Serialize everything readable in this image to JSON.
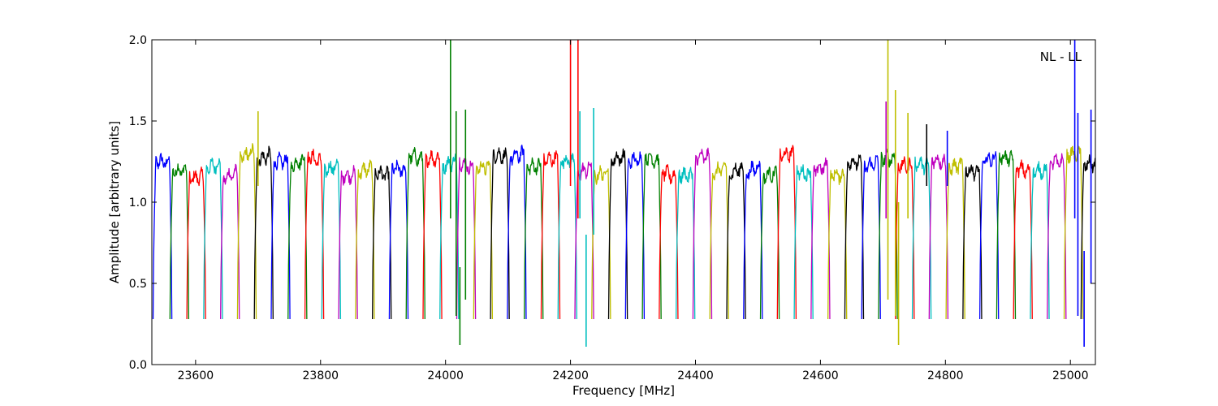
{
  "chart_data": {
    "type": "line",
    "title": "",
    "xlabel": "Frequency [MHz]",
    "ylabel": "Amplitude [arbitrary units]",
    "xlim": [
      23530,
      25040
    ],
    "ylim": [
      0.0,
      2.0
    ],
    "xticks": [
      23600,
      23800,
      24000,
      24200,
      24400,
      24600,
      24800,
      25000
    ],
    "yticks": [
      0.0,
      0.5,
      1.0,
      1.5,
      2.0
    ],
    "ytick_labels": [
      "0.0",
      "0.5",
      "1.0",
      "1.5",
      "2.0"
    ],
    "grid": false,
    "annotation": "NL - LL",
    "annotation_position": "top-right",
    "color_cycle": [
      "#0000ff",
      "#008000",
      "#ff0000",
      "#00bfbf",
      "#bf00bf",
      "#bfbf00",
      "#000000"
    ],
    "channel_count": 56,
    "channel_start_mhz": 23532,
    "channel_spacing_mhz": 27,
    "channel_width_mhz": 30,
    "plateau_level": 1.2,
    "dip_level": 0.28,
    "spikes": [
      {
        "x": 24008,
        "y_min": 0.9,
        "y_max": 2.0,
        "color": "#008000"
      },
      {
        "x": 24017,
        "y_min": 0.3,
        "y_max": 1.56,
        "color": "#008000"
      },
      {
        "x": 24032,
        "y_min": 0.4,
        "y_max": 1.57,
        "color": "#008000"
      },
      {
        "x": 24023,
        "y_min": 0.12,
        "y_max": 0.6,
        "color": "#008000"
      },
      {
        "x": 24200,
        "y_min": 1.1,
        "y_max": 2.0,
        "color": "#ff0000"
      },
      {
        "x": 24212,
        "y_min": 0.9,
        "y_max": 2.0,
        "color": "#ff0000"
      },
      {
        "x": 24215,
        "y_min": 0.9,
        "y_max": 1.56,
        "color": "#00bfbf"
      },
      {
        "x": 24237,
        "y_min": 0.8,
        "y_max": 1.58,
        "color": "#00bfbf"
      },
      {
        "x": 24225,
        "y_min": 0.11,
        "y_max": 0.8,
        "color": "#00bfbf"
      },
      {
        "x": 23700,
        "y_min": 1.1,
        "y_max": 1.56,
        "color": "#bfbf00"
      },
      {
        "x": 24705,
        "y_min": 0.9,
        "y_max": 1.62,
        "color": "#bf00bf"
      },
      {
        "x": 24708,
        "y_min": 0.4,
        "y_max": 2.0,
        "color": "#bfbf00"
      },
      {
        "x": 24720,
        "y_min": 0.3,
        "y_max": 1.69,
        "color": "#bfbf00"
      },
      {
        "x": 24725,
        "y_min": 0.12,
        "y_max": 1.0,
        "color": "#bfbf00"
      },
      {
        "x": 24740,
        "y_min": 0.9,
        "y_max": 1.55,
        "color": "#bfbf00"
      },
      {
        "x": 24770,
        "y_min": 1.1,
        "y_max": 1.48,
        "color": "#000000"
      },
      {
        "x": 24803,
        "y_min": 1.1,
        "y_max": 1.44,
        "color": "#0000ff"
      },
      {
        "x": 25007,
        "y_min": 0.9,
        "y_max": 2.0,
        "color": "#0000ff"
      },
      {
        "x": 25012,
        "y_min": 0.3,
        "y_max": 1.55,
        "color": "#0000ff"
      },
      {
        "x": 25022,
        "y_min": 0.11,
        "y_max": 0.7,
        "color": "#0000ff"
      },
      {
        "x": 25033,
        "y_min": 0.5,
        "y_max": 1.57,
        "color": "#0000ff"
      }
    ]
  }
}
